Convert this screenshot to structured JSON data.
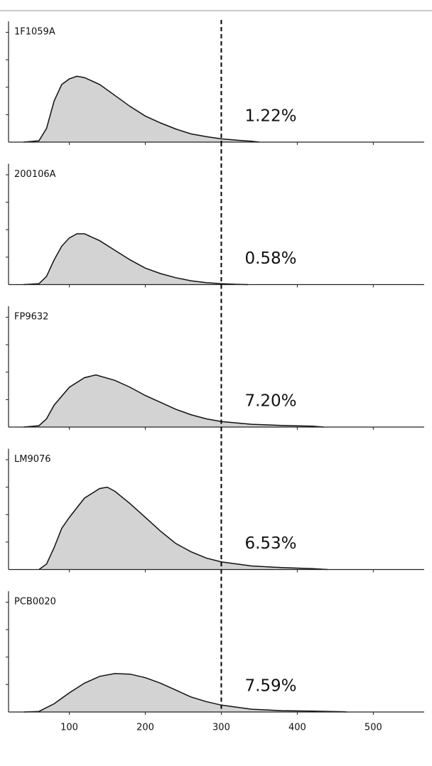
{
  "chart_data": [
    {
      "type": "area",
      "title": "1F1059A",
      "annotation": "1.22%",
      "color": "#d3d3d3",
      "threshold": 300,
      "xlim": [
        20,
        567
      ],
      "ylim": [
        0,
        4.4
      ],
      "yticks": [
        1,
        2,
        3,
        4
      ],
      "x": [
        40,
        60,
        70,
        80,
        90,
        100,
        110,
        120,
        140,
        160,
        180,
        200,
        220,
        240,
        260,
        280,
        300,
        320,
        340,
        350
      ],
      "values": [
        0,
        0.05,
        0.5,
        1.5,
        2.1,
        2.3,
        2.4,
        2.35,
        2.1,
        1.7,
        1.3,
        0.95,
        0.7,
        0.48,
        0.3,
        0.2,
        0.12,
        0.07,
        0.03,
        0
      ]
    },
    {
      "type": "area",
      "title": "200106A",
      "annotation": "0.58%",
      "color": "#d3d3d3",
      "threshold": 300,
      "xlim": [
        20,
        567
      ],
      "ylim": [
        0,
        4.4
      ],
      "yticks": [
        1,
        2,
        3,
        4
      ],
      "x": [
        40,
        60,
        70,
        80,
        90,
        100,
        110,
        120,
        140,
        160,
        180,
        200,
        220,
        240,
        260,
        280,
        300,
        320,
        335
      ],
      "values": [
        0,
        0.03,
        0.3,
        0.9,
        1.4,
        1.7,
        1.85,
        1.85,
        1.6,
        1.25,
        0.9,
        0.6,
        0.4,
        0.25,
        0.14,
        0.07,
        0.03,
        0.01,
        0
      ]
    },
    {
      "type": "area",
      "title": "FP9632",
      "annotation": "7.20%",
      "color": "#d3d3d3",
      "threshold": 300,
      "xlim": [
        20,
        567
      ],
      "ylim": [
        0,
        4.4
      ],
      "yticks": [
        1,
        2,
        3,
        4
      ],
      "x": [
        40,
        60,
        70,
        80,
        100,
        120,
        135,
        160,
        180,
        200,
        220,
        240,
        260,
        280,
        300,
        340,
        380,
        420,
        435
      ],
      "values": [
        0,
        0.05,
        0.3,
        0.8,
        1.45,
        1.8,
        1.9,
        1.7,
        1.45,
        1.15,
        0.9,
        0.65,
        0.45,
        0.3,
        0.2,
        0.1,
        0.06,
        0.03,
        0
      ]
    },
    {
      "type": "area",
      "title": "LM9076",
      "annotation": "6.53%",
      "color": "#d3d3d3",
      "threshold": 300,
      "xlim": [
        20,
        567
      ],
      "ylim": [
        0,
        4.4
      ],
      "yticks": [
        1,
        2,
        3,
        4
      ],
      "x": [
        60,
        70,
        80,
        90,
        100,
        120,
        140,
        150,
        160,
        180,
        200,
        220,
        240,
        260,
        280,
        300,
        340,
        380,
        420,
        440
      ],
      "values": [
        0,
        0.2,
        0.8,
        1.5,
        1.9,
        2.6,
        2.95,
        3.0,
        2.85,
        2.4,
        1.9,
        1.4,
        0.95,
        0.65,
        0.42,
        0.28,
        0.13,
        0.07,
        0.03,
        0
      ]
    },
    {
      "type": "area",
      "title": "PCB0020",
      "annotation": "7.59%",
      "color": "#d3d3d3",
      "threshold": 300,
      "xlim": [
        20,
        567
      ],
      "ylim": [
        0,
        4.4
      ],
      "yticks": [
        1,
        2,
        3,
        4
      ],
      "xticks": [
        100,
        200,
        300,
        400,
        500
      ],
      "x": [
        40,
        60,
        80,
        100,
        120,
        140,
        160,
        180,
        200,
        220,
        240,
        260,
        280,
        300,
        340,
        380,
        420,
        460,
        465
      ],
      "values": [
        0,
        0.02,
        0.3,
        0.7,
        1.05,
        1.3,
        1.4,
        1.38,
        1.25,
        1.05,
        0.8,
        0.55,
        0.38,
        0.25,
        0.1,
        0.05,
        0.03,
        0.01,
        0
      ]
    }
  ]
}
